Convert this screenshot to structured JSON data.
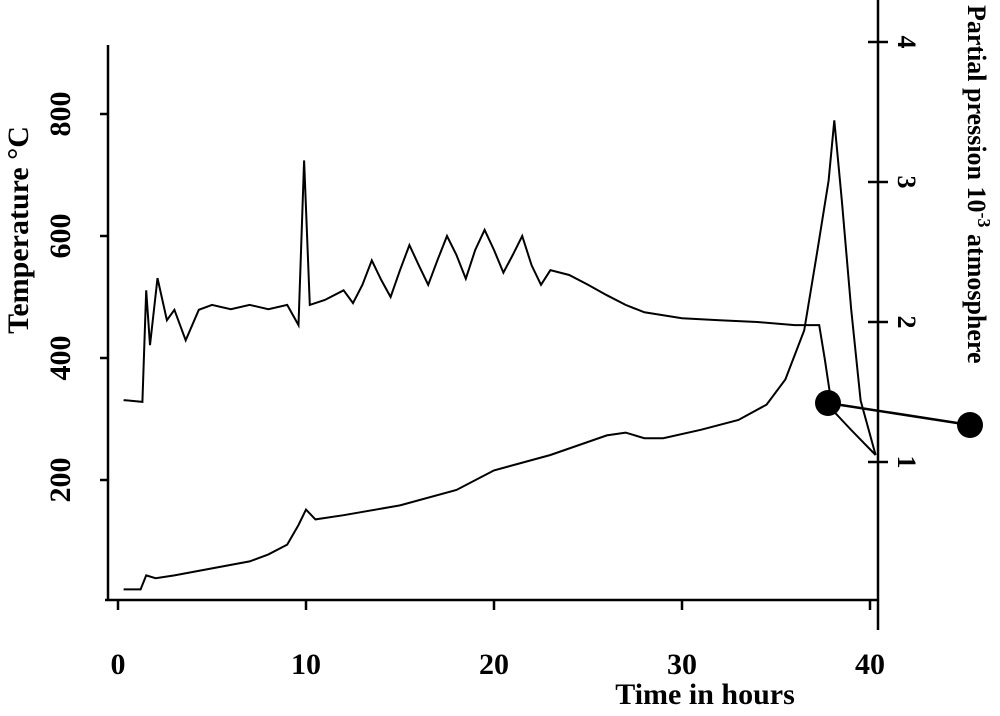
{
  "chart_data": {
    "type": "line",
    "xlabel": "Time in hours",
    "ylabel": "Temperature  °C",
    "y2label": {
      "text": "Partial pression 10",
      "superscript": "-3",
      "unit": " atmosphere"
    },
    "xlim": [
      0,
      40
    ],
    "xticks": [
      0,
      10,
      20,
      30,
      40
    ],
    "ylim": [
      0,
      900
    ],
    "yticks": [
      200,
      400,
      600,
      800
    ],
    "y2lim": [
      0,
      4.3
    ],
    "y2ticks": [
      1,
      2,
      3,
      4
    ],
    "series": [
      {
        "name": "Temperature",
        "color": "#000000",
        "axis": "y",
        "x": [
          0.3,
          1.3,
          1.5,
          1.7,
          2.1,
          2.6,
          3.0,
          3.6,
          4.3,
          5,
          6,
          7,
          8,
          9,
          9.6,
          9.9,
          10.2,
          11,
          12,
          12.5,
          13,
          13.5,
          14,
          14.5,
          15,
          15.5,
          16,
          16.5,
          17,
          17.5,
          18,
          18.5,
          19,
          19.5,
          20,
          20.5,
          21,
          21.5,
          22,
          22.5,
          23,
          24,
          25,
          26,
          27,
          28,
          30,
          32,
          34,
          36,
          37.3,
          37.6,
          38,
          39,
          40.3
        ],
        "values": [
          331,
          328,
          511,
          421,
          531,
          462,
          479,
          429,
          479,
          487,
          480,
          487,
          480,
          487,
          454,
          724,
          487,
          495,
          511,
          490,
          520,
          560,
          528,
          500,
          544,
          585,
          552,
          520,
          561,
          600,
          569,
          530,
          577,
          610,
          577,
          540,
          569,
          600,
          552,
          520,
          544,
          536,
          520,
          503,
          487,
          475,
          465,
          462,
          459,
          454,
          454,
          397,
          315,
          282,
          241
        ]
      },
      {
        "name": "Partial pression",
        "color": "#000000",
        "axis": "y2",
        "x": [
          0.3,
          1.2,
          1.5,
          2,
          3,
          5,
          7,
          8,
          9,
          9.6,
          10,
          10.5,
          12,
          15,
          18,
          20,
          23,
          26,
          27,
          28,
          29,
          31,
          33,
          34.5,
          35.5,
          36.5,
          37.2,
          37.8,
          38.1,
          38.5,
          39,
          39.5,
          40.3
        ],
        "values": [
          0.09,
          0.09,
          0.19,
          0.17,
          0.19,
          0.24,
          0.29,
          0.34,
          0.41,
          0.55,
          0.66,
          0.59,
          0.62,
          0.69,
          0.8,
          0.94,
          1.05,
          1.19,
          1.21,
          1.17,
          1.17,
          1.23,
          1.3,
          1.41,
          1.59,
          1.94,
          2.51,
          3.01,
          3.44,
          2.87,
          2.09,
          1.44,
          1.05
        ]
      }
    ]
  }
}
